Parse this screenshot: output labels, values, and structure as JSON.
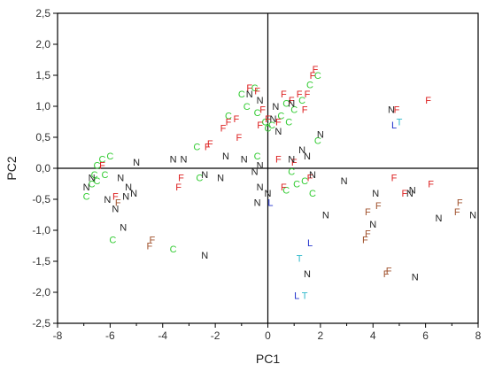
{
  "chart_data": {
    "type": "scatter",
    "title": "",
    "xlabel": "PC1",
    "ylabel": "PC2",
    "xlim": [
      -8,
      8
    ],
    "ylim": [
      -2.5,
      2.5
    ],
    "x_ticks": [
      "-8",
      "-6",
      "-4",
      "-2",
      "0",
      "2",
      "4",
      "6",
      "8"
    ],
    "y_ticks": [
      "-2,5",
      "-2,0",
      "-1,5",
      "-1,0",
      "-0,5",
      "0,0",
      "0,5",
      "1,0",
      "1,5",
      "2,0",
      "2,5"
    ],
    "grid": false,
    "reference_lines": {
      "x": 0,
      "y": 0
    },
    "colors": {
      "C": "#33cc33",
      "F": "#dd2222",
      "F_dark": "#a0522d",
      "N": "#222222",
      "L": "#2233cc",
      "T": "#33bbcc"
    },
    "points": [
      {
        "label": "C",
        "x": -6.3,
        "y": 0.15
      },
      {
        "label": "C",
        "x": -6.5,
        "y": 0.05
      },
      {
        "label": "C",
        "x": -6.0,
        "y": 0.2
      },
      {
        "label": "C",
        "x": -6.6,
        "y": -0.1
      },
      {
        "label": "C",
        "x": -6.7,
        "y": -0.25
      },
      {
        "label": "C",
        "x": -6.2,
        "y": -0.1
      },
      {
        "label": "C",
        "x": -6.5,
        "y": -0.2
      },
      {
        "label": "C",
        "x": -6.9,
        "y": -0.45
      },
      {
        "label": "C",
        "x": -5.9,
        "y": -1.15
      },
      {
        "label": "C",
        "x": -3.6,
        "y": -1.3
      },
      {
        "label": "C",
        "x": -2.6,
        "y": -0.15
      },
      {
        "label": "C",
        "x": -2.7,
        "y": 0.35
      },
      {
        "label": "C",
        "x": -1.5,
        "y": 0.85
      },
      {
        "label": "C",
        "x": -1.0,
        "y": 1.2
      },
      {
        "label": "C",
        "x": -0.8,
        "y": 1.0
      },
      {
        "label": "C",
        "x": -0.5,
        "y": 1.3
      },
      {
        "label": "C",
        "x": -0.4,
        "y": 0.9
      },
      {
        "label": "C",
        "x": -0.1,
        "y": 0.75
      },
      {
        "label": "C",
        "x": 0.0,
        "y": 0.65
      },
      {
        "label": "C",
        "x": 0.15,
        "y": 0.7
      },
      {
        "label": "C",
        "x": -0.4,
        "y": 0.2
      },
      {
        "label": "C",
        "x": 0.5,
        "y": 0.85
      },
      {
        "label": "C",
        "x": 0.7,
        "y": 1.05
      },
      {
        "label": "C",
        "x": 0.8,
        "y": 0.75
      },
      {
        "label": "C",
        "x": 1.0,
        "y": 0.95
      },
      {
        "label": "C",
        "x": 1.3,
        "y": 1.1
      },
      {
        "label": "C",
        "x": 1.6,
        "y": 1.35
      },
      {
        "label": "C",
        "x": 1.9,
        "y": 1.5
      },
      {
        "label": "C",
        "x": 1.9,
        "y": 0.45
      },
      {
        "label": "C",
        "x": 1.4,
        "y": -0.2
      },
      {
        "label": "C",
        "x": 1.7,
        "y": -0.4
      },
      {
        "label": "C",
        "x": 0.7,
        "y": -0.35
      },
      {
        "label": "C",
        "x": 0.9,
        "y": -0.05
      },
      {
        "label": "C",
        "x": 1.1,
        "y": -0.25
      },
      {
        "label": "F",
        "x": -6.3,
        "y": 0.05
      },
      {
        "label": "F",
        "x": -5.8,
        "y": -0.45
      },
      {
        "label": "F",
        "x": -3.4,
        "y": -0.3
      },
      {
        "label": "F",
        "x": -3.3,
        "y": -0.15
      },
      {
        "label": "F",
        "x": -2.3,
        "y": 0.35
      },
      {
        "label": "F",
        "x": -2.2,
        "y": 0.4
      },
      {
        "label": "F",
        "x": -1.7,
        "y": 0.65
      },
      {
        "label": "F",
        "x": -1.5,
        "y": 0.75
      },
      {
        "label": "F",
        "x": -1.2,
        "y": 0.8
      },
      {
        "label": "F",
        "x": -1.1,
        "y": 0.5
      },
      {
        "label": "F",
        "x": -0.7,
        "y": 1.3
      },
      {
        "label": "F",
        "x": -0.4,
        "y": 1.25
      },
      {
        "label": "F",
        "x": -0.2,
        "y": 0.95
      },
      {
        "label": "F",
        "x": -0.3,
        "y": 0.7
      },
      {
        "label": "F",
        "x": 0.0,
        "y": 0.8
      },
      {
        "label": "F",
        "x": 0.4,
        "y": 0.75
      },
      {
        "label": "F",
        "x": 0.6,
        "y": 1.2
      },
      {
        "label": "F",
        "x": 0.9,
        "y": 1.1
      },
      {
        "label": "F",
        "x": 1.2,
        "y": 1.2
      },
      {
        "label": "F",
        "x": 1.4,
        "y": 0.95
      },
      {
        "label": "F",
        "x": 1.7,
        "y": 1.5
      },
      {
        "label": "F",
        "x": 1.8,
        "y": 1.6
      },
      {
        "label": "F",
        "x": 1.5,
        "y": 1.2
      },
      {
        "label": "F",
        "x": 0.4,
        "y": 0.15
      },
      {
        "label": "F",
        "x": 1.0,
        "y": 0.1
      },
      {
        "label": "F",
        "x": 0.6,
        "y": -0.3
      },
      {
        "label": "F",
        "x": 1.6,
        "y": -0.15
      },
      {
        "label": "F",
        "x": 4.9,
        "y": 0.95
      },
      {
        "label": "F",
        "x": 6.1,
        "y": 1.1
      },
      {
        "label": "F",
        "x": 4.8,
        "y": -0.15
      },
      {
        "label": "F",
        "x": 6.2,
        "y": -0.25
      },
      {
        "label": "F",
        "x": 5.2,
        "y": -0.4
      },
      {
        "label": "F_dark",
        "x": -5.7,
        "y": -0.55
      },
      {
        "label": "F_dark",
        "x": -4.4,
        "y": -1.15
      },
      {
        "label": "F_dark",
        "x": -4.5,
        "y": -1.25
      },
      {
        "label": "F_dark",
        "x": 3.8,
        "y": -0.7
      },
      {
        "label": "F_dark",
        "x": 4.2,
        "y": -0.6
      },
      {
        "label": "F_dark",
        "x": 3.8,
        "y": -1.05
      },
      {
        "label": "F_dark",
        "x": 3.7,
        "y": -1.15
      },
      {
        "label": "F_dark",
        "x": 4.6,
        "y": -1.65
      },
      {
        "label": "F_dark",
        "x": 4.5,
        "y": -1.7
      },
      {
        "label": "F_dark",
        "x": 7.3,
        "y": -0.55
      },
      {
        "label": "F_dark",
        "x": 7.2,
        "y": -0.7
      },
      {
        "label": "N",
        "x": -5.0,
        "y": 0.1
      },
      {
        "label": "N",
        "x": -5.6,
        "y": -0.15
      },
      {
        "label": "N",
        "x": -5.3,
        "y": -0.3
      },
      {
        "label": "N",
        "x": -5.4,
        "y": -0.45
      },
      {
        "label": "N",
        "x": -6.9,
        "y": -0.3
      },
      {
        "label": "N",
        "x": -6.7,
        "y": -0.15
      },
      {
        "label": "N",
        "x": -6.1,
        "y": -0.5
      },
      {
        "label": "N",
        "x": -5.8,
        "y": -0.65
      },
      {
        "label": "N",
        "x": -5.5,
        "y": -0.95
      },
      {
        "label": "N",
        "x": -5.1,
        "y": -0.4
      },
      {
        "label": "N",
        "x": -3.2,
        "y": 0.15
      },
      {
        "label": "N",
        "x": -1.6,
        "y": 0.2
      },
      {
        "label": "N",
        "x": -1.8,
        "y": -0.15
      },
      {
        "label": "N",
        "x": -3.6,
        "y": 0.15
      },
      {
        "label": "N",
        "x": -2.4,
        "y": -0.1
      },
      {
        "label": "N",
        "x": -0.9,
        "y": 0.15
      },
      {
        "label": "N",
        "x": -0.5,
        "y": -0.05
      },
      {
        "label": "N",
        "x": -0.3,
        "y": 0.05
      },
      {
        "label": "N",
        "x": -0.3,
        "y": -0.3
      },
      {
        "label": "N",
        "x": -0.4,
        "y": -0.55
      },
      {
        "label": "N",
        "x": 0.0,
        "y": -0.4
      },
      {
        "label": "N",
        "x": 0.9,
        "y": 0.15
      },
      {
        "label": "N",
        "x": 1.5,
        "y": 0.2
      },
      {
        "label": "N",
        "x": 1.7,
        "y": -0.1
      },
      {
        "label": "N",
        "x": 2.0,
        "y": 0.55
      },
      {
        "label": "N",
        "x": 1.3,
        "y": 0.3
      },
      {
        "label": "N",
        "x": 0.4,
        "y": 0.6
      },
      {
        "label": "N",
        "x": -0.3,
        "y": 1.1
      },
      {
        "label": "N",
        "x": -0.7,
        "y": 1.2
      },
      {
        "label": "N",
        "x": 0.3,
        "y": 1.0
      },
      {
        "label": "N",
        "x": 0.9,
        "y": 1.05
      },
      {
        "label": "N",
        "x": 0.2,
        "y": 0.8
      },
      {
        "label": "N",
        "x": 2.2,
        "y": -0.75
      },
      {
        "label": "N",
        "x": 1.5,
        "y": -1.7
      },
      {
        "label": "N",
        "x": 2.9,
        "y": -0.2
      },
      {
        "label": "N",
        "x": 4.1,
        "y": -0.4
      },
      {
        "label": "N",
        "x": 4.0,
        "y": -0.9
      },
      {
        "label": "N",
        "x": 4.7,
        "y": 0.95
      },
      {
        "label": "N",
        "x": 5.4,
        "y": -0.4
      },
      {
        "label": "N",
        "x": 5.5,
        "y": -0.35
      },
      {
        "label": "N",
        "x": 5.6,
        "y": -1.75
      },
      {
        "label": "N",
        "x": 6.5,
        "y": -0.8
      },
      {
        "label": "N",
        "x": 7.8,
        "y": -0.75
      },
      {
        "label": "N",
        "x": -2.4,
        "y": -1.4
      },
      {
        "label": "L",
        "x": 0.1,
        "y": -0.55
      },
      {
        "label": "L",
        "x": 4.8,
        "y": 0.7
      },
      {
        "label": "L",
        "x": 1.6,
        "y": -1.2
      },
      {
        "label": "L",
        "x": 1.1,
        "y": -2.05
      },
      {
        "label": "T",
        "x": 5.0,
        "y": 0.75
      },
      {
        "label": "T",
        "x": 1.2,
        "y": -1.45
      },
      {
        "label": "T",
        "x": 1.4,
        "y": -2.05
      }
    ]
  }
}
